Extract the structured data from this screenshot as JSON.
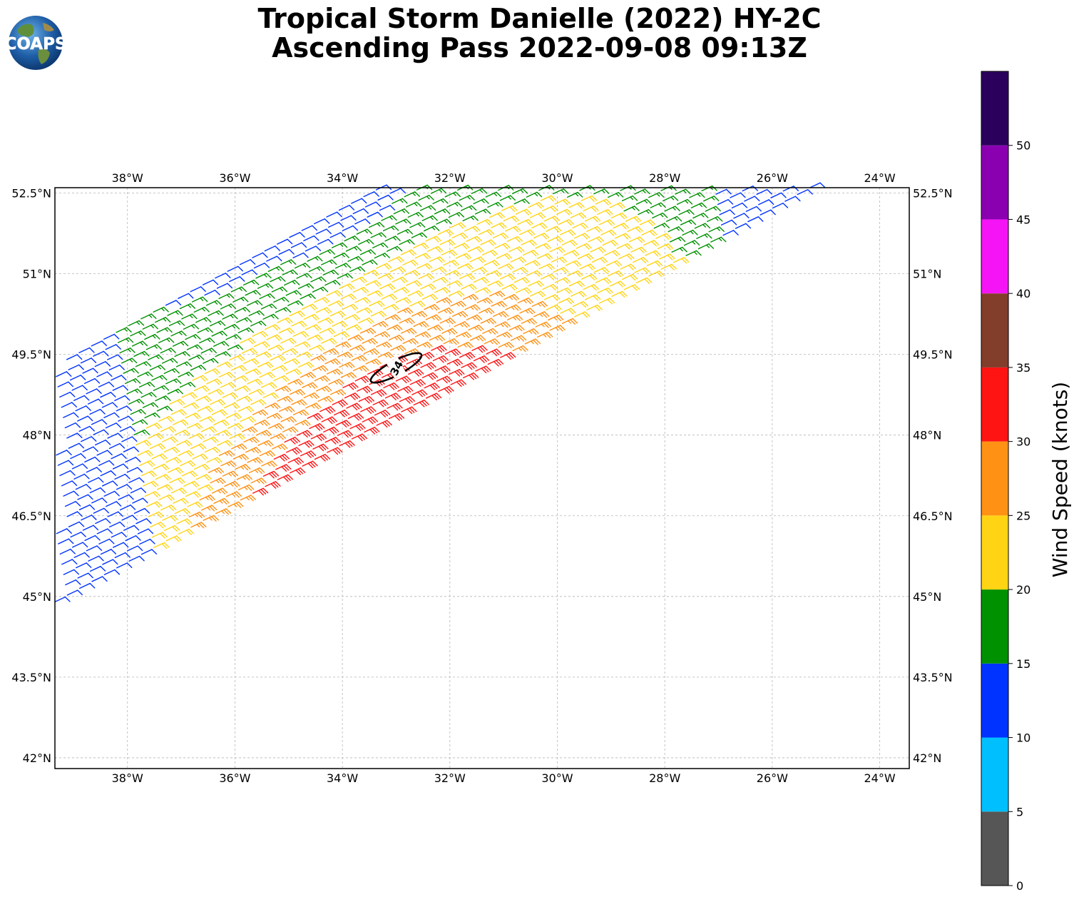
{
  "title": {
    "line1": "Tropical Storm Danielle (2022) HY-2C",
    "line2": "Ascending Pass 2022-09-08 09:13Z"
  },
  "logo": {
    "text": "COAPS"
  },
  "map": {
    "lon_range": [
      -39.35,
      -23.45
    ],
    "lat_range": [
      41.8,
      52.6
    ],
    "grid": true,
    "lon_ticks": [
      {
        "value": -38,
        "label": "38°W"
      },
      {
        "value": -36,
        "label": "36°W"
      },
      {
        "value": -34,
        "label": "34°W"
      },
      {
        "value": -32,
        "label": "32°W"
      },
      {
        "value": -30,
        "label": "30°W"
      },
      {
        "value": -28,
        "label": "28°W"
      },
      {
        "value": -26,
        "label": "26°W"
      },
      {
        "value": -24,
        "label": "24°W"
      }
    ],
    "lat_ticks": [
      {
        "value": 52.5,
        "label": "52.5°N"
      },
      {
        "value": 51,
        "label": "51°N"
      },
      {
        "value": 49.5,
        "label": "49.5°N"
      },
      {
        "value": 48,
        "label": "48°N"
      },
      {
        "value": 46.5,
        "label": "46.5°N"
      },
      {
        "value": 45,
        "label": "45°N"
      },
      {
        "value": 43.5,
        "label": "43.5°N"
      },
      {
        "value": 42,
        "label": "42°N"
      }
    ]
  },
  "chart_data": {
    "type": "wind-barbs",
    "swath": {
      "start": {
        "lon": -39.35,
        "lat": 44.9
      },
      "end": {
        "lon": -25.3,
        "lat": 52.6
      },
      "width_lat": 4.0
    },
    "wind_zones": [
      {
        "from": 0.0,
        "to": 0.1,
        "knots": 10
      },
      {
        "from": 0.1,
        "to": 0.3,
        "knots": 17
      },
      {
        "from": 0.3,
        "to": 0.55,
        "knots": 23
      },
      {
        "from": 0.55,
        "to": 0.75,
        "knots": 27
      },
      {
        "from": 0.75,
        "to": 1.0,
        "knots": 32
      }
    ],
    "contour": {
      "label": "34",
      "center": {
        "lon": -33.0,
        "lat": 49.25
      },
      "knots": 34
    }
  },
  "colorbar": {
    "label": "Wind Speed (knots)",
    "ticks": [
      "0",
      "5",
      "10",
      "15",
      "20",
      "25",
      "30",
      "35",
      "40",
      "45",
      "50"
    ],
    "bins": [
      {
        "min": 0,
        "max": 5,
        "color": "#565656"
      },
      {
        "min": 5,
        "max": 10,
        "color": "#00bfff"
      },
      {
        "min": 10,
        "max": 15,
        "color": "#0033ff"
      },
      {
        "min": 15,
        "max": 20,
        "color": "#009100"
      },
      {
        "min": 20,
        "max": 25,
        "color": "#ffd414"
      },
      {
        "min": 25,
        "max": 30,
        "color": "#ff9214"
      },
      {
        "min": 30,
        "max": 35,
        "color": "#ff1414"
      },
      {
        "min": 35,
        "max": 40,
        "color": "#833d2b"
      },
      {
        "min": 40,
        "max": 45,
        "color": "#f514f5"
      },
      {
        "min": 45,
        "max": 50,
        "color": "#8a00b0"
      },
      {
        "min": 50,
        "max": 55,
        "color": "#2b005c"
      }
    ]
  }
}
